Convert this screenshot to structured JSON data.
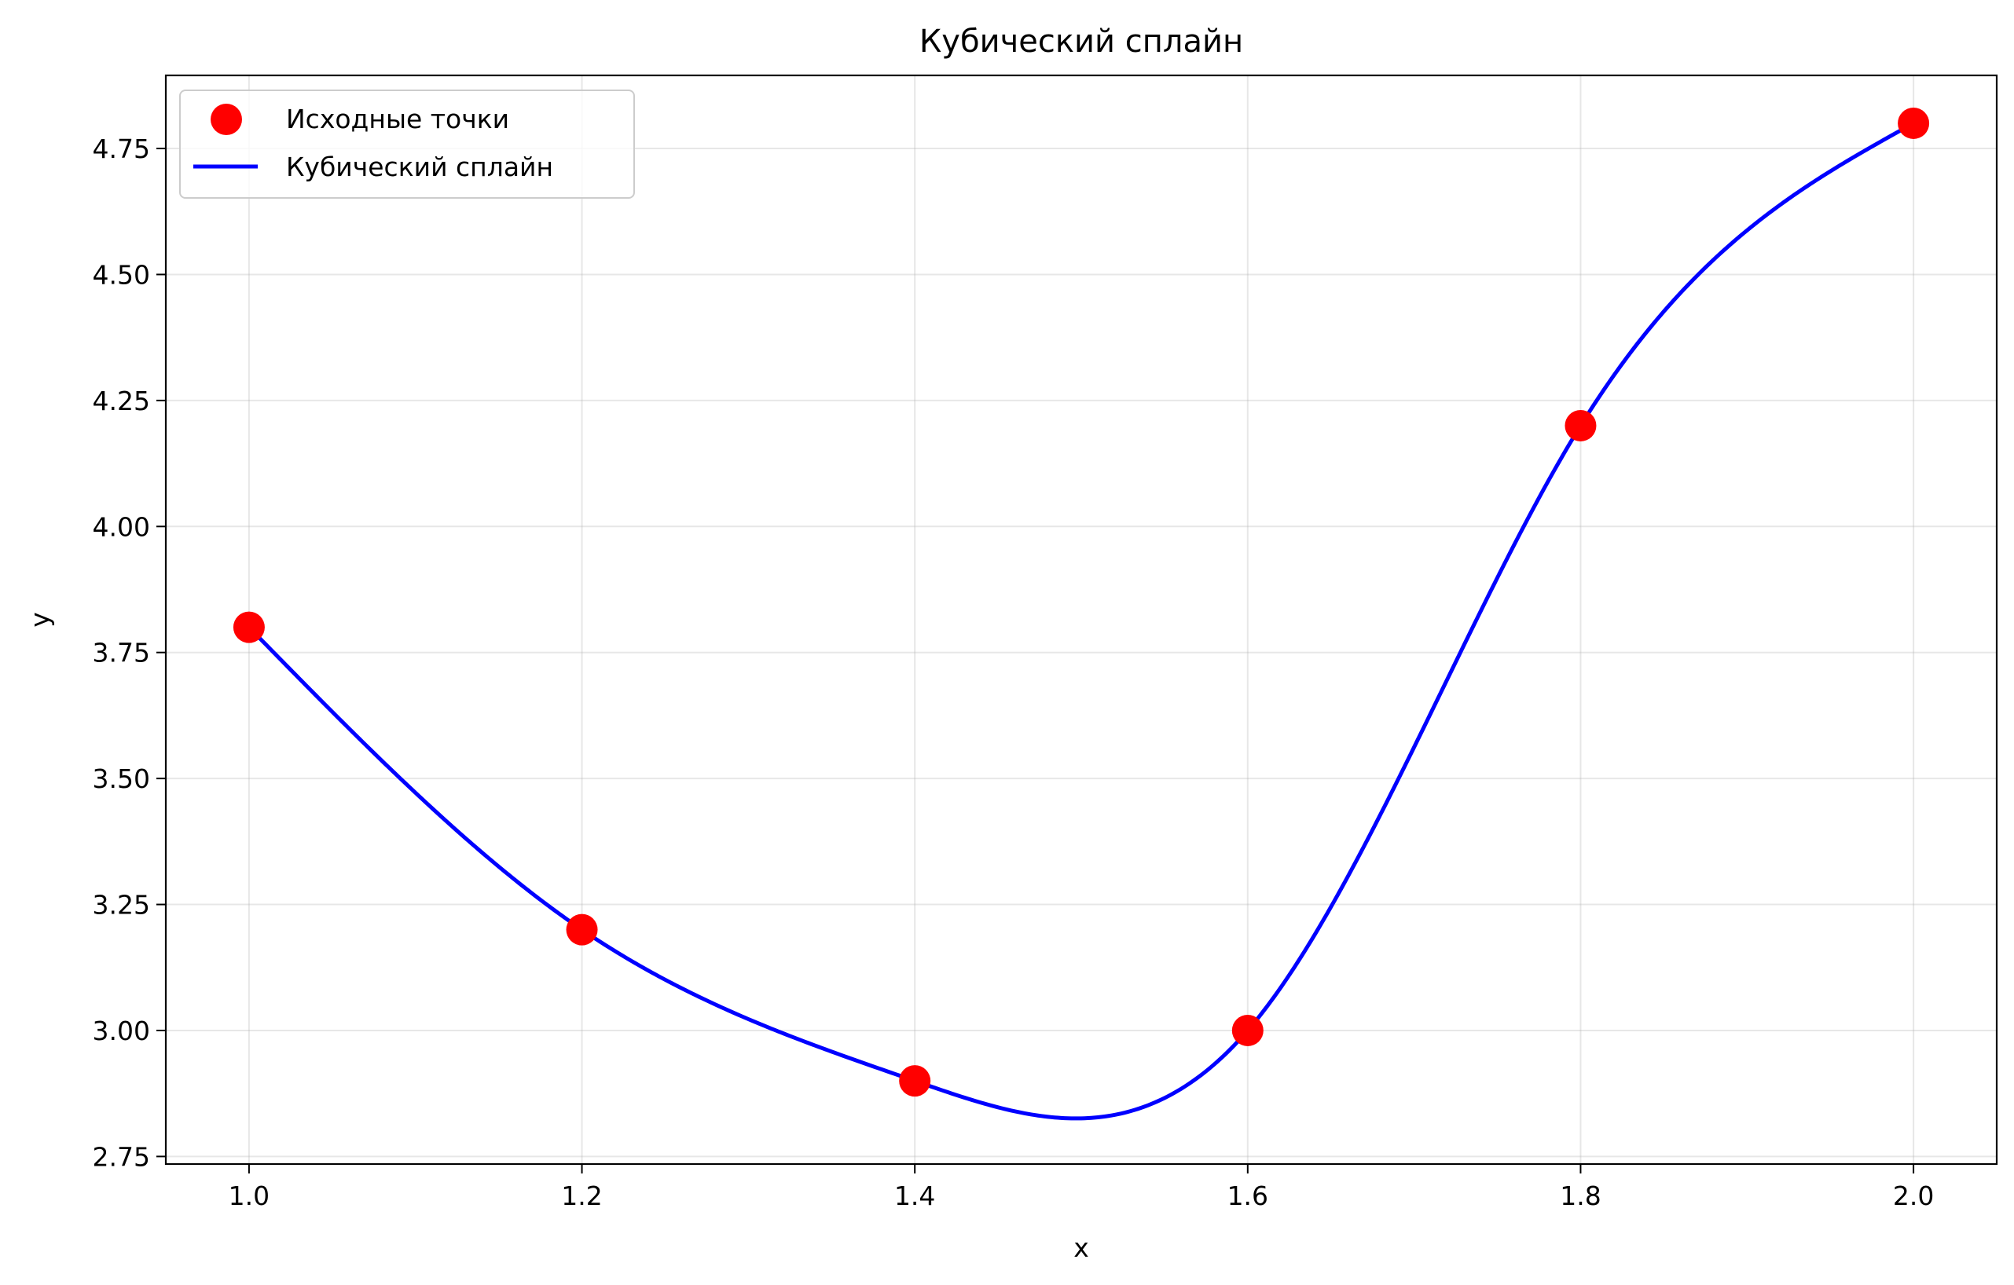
{
  "chart_data": {
    "type": "line",
    "title": "Кубический сплайн",
    "xlabel": "x",
    "ylabel": "y",
    "xlim": [
      0.95,
      2.05
    ],
    "ylim": [
      2.735,
      4.895
    ],
    "xticks": [
      1.0,
      1.2,
      1.4,
      1.6,
      1.8,
      2.0
    ],
    "xtick_labels": [
      "1.0",
      "1.2",
      "1.4",
      "1.6",
      "1.8",
      "2.0"
    ],
    "yticks": [
      2.75,
      3.0,
      3.25,
      3.5,
      3.75,
      4.0,
      4.25,
      4.5,
      4.75
    ],
    "ytick_labels": [
      "2.75",
      "3.00",
      "3.25",
      "3.50",
      "3.75",
      "4.00",
      "4.25",
      "4.50",
      "4.75"
    ],
    "grid": true,
    "legend_position": "top-left",
    "series": [
      {
        "name": "Исходные точки",
        "kind": "scatter",
        "color": "#ff0000",
        "x": [
          1.0,
          1.2,
          1.4,
          1.6,
          1.8,
          2.0
        ],
        "y": [
          3.8,
          3.2,
          2.9,
          3.0,
          4.2,
          4.8
        ]
      },
      {
        "name": "Кубический сплайн",
        "kind": "line",
        "color": "#0000ff",
        "interpolation": "natural cubic spline through the source points"
      }
    ]
  }
}
